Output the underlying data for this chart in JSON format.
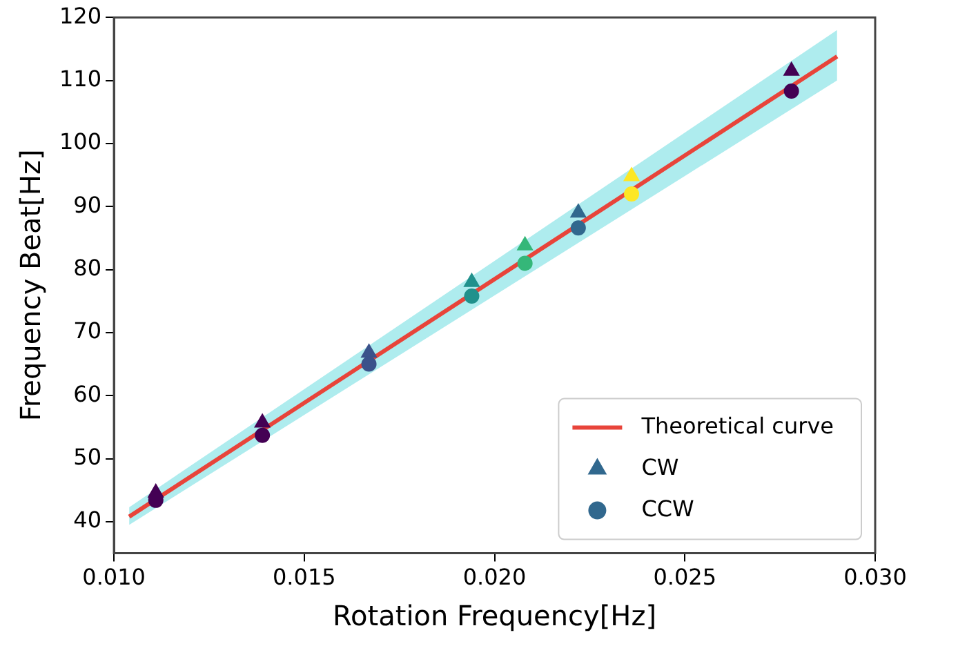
{
  "chart_data": {
    "type": "scatter",
    "xlabel": "Rotation Frequency[Hz]",
    "ylabel": "Frequency Beat[Hz]",
    "xlim": [
      0.01,
      0.03
    ],
    "xticks": [
      {
        "value": 0.01,
        "label": "0.010"
      },
      {
        "value": 0.015,
        "label": "0.015"
      },
      {
        "value": 0.02,
        "label": "0.020"
      },
      {
        "value": 0.025,
        "label": "0.025"
      },
      {
        "value": 0.03,
        "label": "0.030"
      }
    ],
    "ylim": [
      35,
      120
    ],
    "yticks": [
      40,
      50,
      60,
      70,
      80,
      90,
      100,
      110,
      120
    ],
    "grid": false,
    "legend": "bottom right",
    "series": [
      {
        "name": "Theoretical curve",
        "type": "line",
        "color": "#e8443a",
        "marker": "none",
        "line_style": "solid",
        "x": [
          0.0104,
          0.029
        ],
        "values": [
          40.8,
          113.8
        ],
        "lower": [
          39.5,
          110
        ],
        "upper": [
          42.3,
          118
        ]
      },
      {
        "name": "CW",
        "type": "scatter",
        "marker": "triangle",
        "color": "#31688e",
        "x": [
          0.0111,
          0.0139,
          0.0167,
          0.0194,
          0.0208,
          0.0222,
          0.0236,
          0.0278
        ],
        "values": [
          44.6,
          55.7,
          66.8,
          78,
          83.8,
          89,
          94.8,
          111.5
        ],
        "colors": [
          "#440154",
          "#440154",
          "#3b528b",
          "#21918c",
          "#35b779",
          "#31688e",
          "#fde725",
          "#440154"
        ]
      },
      {
        "name": "CCW",
        "type": "scatter",
        "marker": "circle",
        "color": "#31688e",
        "x": [
          0.0111,
          0.0139,
          0.0167,
          0.0194,
          0.0208,
          0.0222,
          0.0236,
          0.0278
        ],
        "values": [
          43.4,
          53.7,
          65,
          75.8,
          81,
          86.6,
          92,
          108.3
        ],
        "colors": [
          "#440154",
          "#440154",
          "#3b528b",
          "#21918c",
          "#35b779",
          "#31688e",
          "#fde725",
          "#440154"
        ]
      }
    ]
  }
}
